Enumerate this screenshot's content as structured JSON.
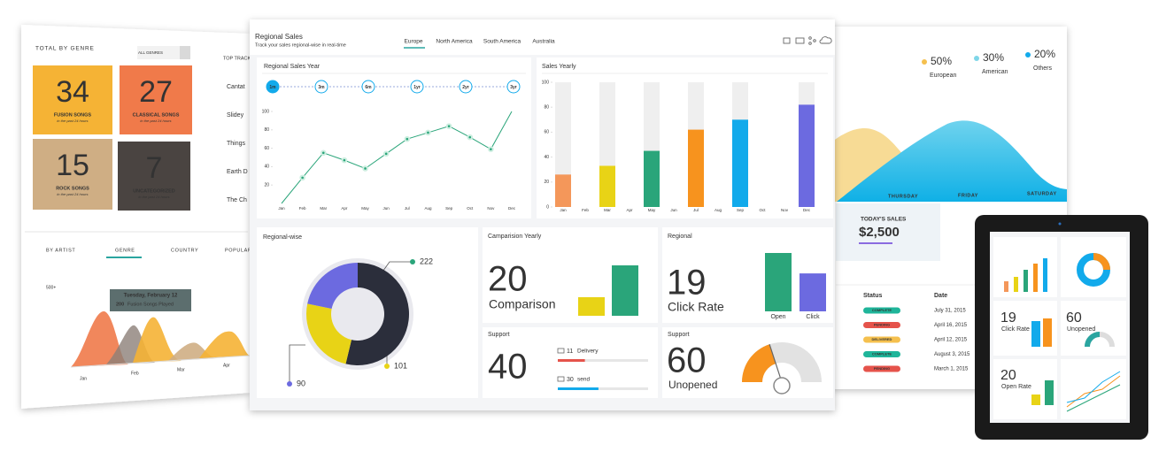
{
  "left_panel": {
    "title": "TOTAL BY GENRE",
    "filter": "ALL GENRES",
    "tiles": [
      {
        "value": 34,
        "label": "FUSION SONGS",
        "note": "in the past 24 hours"
      },
      {
        "value": 27,
        "label": "CLASSICAL SONGS",
        "note": "in the past 24 hours"
      },
      {
        "value": 15,
        "label": "ROCK SONGS",
        "note": "in the past 24 hours"
      },
      {
        "value": 7,
        "label": "UNCATEGORIZED",
        "note": "in the past 24 hours"
      }
    ],
    "top_tracks": {
      "title": "TOP TRACK",
      "items": [
        "Cantat",
        "Slidey",
        "Things",
        "Earth D",
        "The Ch"
      ]
    },
    "tabs": [
      "BY ARTIST",
      "GENRE",
      "COUNTRY",
      "POPULAR"
    ],
    "tooltip": {
      "date": "Tuesday, February 12",
      "count": 200,
      "text": "Fusion Songs Played"
    },
    "y_label": "500+",
    "months": [
      "Jan",
      "Feb",
      "Mar",
      "Apr"
    ]
  },
  "right_panel": {
    "legend": [
      {
        "value": "50%",
        "label": "European",
        "color": "#f5c04e"
      },
      {
        "value": "30%",
        "label": "American",
        "color": "#7fd6e8"
      },
      {
        "value": "20%",
        "label": "Others",
        "color": "#12aaeb"
      }
    ],
    "days": [
      "THURSDAY",
      "FRIDAY",
      "SATURDAY"
    ],
    "sales": {
      "label": "TODAY'S SALES",
      "value": "$2,500"
    },
    "table": {
      "header": [
        "Status",
        "Date"
      ],
      "rows": [
        [
          "COMPLETE",
          "July 31, 2015"
        ],
        [
          "PENDING",
          "April 16, 2015"
        ],
        [
          "DELIVERED",
          "April 12, 2015"
        ],
        [
          "COMPLETE",
          "August 3, 2015"
        ],
        [
          "PENDING",
          "March 1, 2015"
        ]
      ]
    }
  },
  "main": {
    "title": "Regional Sales",
    "subtitle": "Track your sales regional-wise in real-time",
    "tabs": [
      "Europe",
      "North America",
      "South America",
      "Australia"
    ],
    "sales_year": {
      "type": "line",
      "title": "Regional Sales Year",
      "ranges": [
        "1m",
        "3m",
        "6m",
        "1yr",
        "2yr",
        "3yr"
      ],
      "categories": [
        "Jan",
        "Feb",
        "Mar",
        "Apr",
        "May",
        "Jun",
        "Jul",
        "Aug",
        "Sep",
        "Oct",
        "Nov",
        "Dec"
      ],
      "values": [
        0,
        28,
        55,
        47,
        38,
        54,
        70,
        77,
        84,
        72,
        59,
        100
      ],
      "color": "#2aa57a",
      "ylim": [
        0,
        100
      ],
      "yticks": [
        20,
        40,
        60,
        80,
        100
      ]
    },
    "sales_yearly": {
      "type": "bar",
      "title": "Sales Yearly",
      "categories": [
        "Jan",
        "Feb",
        "Mar",
        "Apr",
        "May",
        "Jun",
        "Jul",
        "Aug",
        "Sep",
        "Oct",
        "Nov",
        "Dec"
      ],
      "values": [
        26,
        null,
        33,
        null,
        45,
        null,
        62,
        null,
        70,
        null,
        null,
        82
      ],
      "colors": [
        "#f4975a",
        null,
        "#e8d316",
        null,
        "#2aa57a",
        null,
        "#f7931e",
        null,
        "#12aaeb",
        null,
        null,
        "#6c6ae0"
      ],
      "ylim": [
        0,
        100
      ],
      "yticks": [
        0,
        20,
        40,
        60,
        80,
        100
      ]
    },
    "regional_wise": {
      "type": "donut",
      "title": "Regional-wise",
      "values": [
        222,
        101,
        90
      ],
      "colors": [
        "#2b2e3b",
        "#e8d316",
        "#6c6ae0"
      ]
    },
    "comparison": {
      "type": "bar",
      "title": "Camparision Yearly",
      "value": 20,
      "label": "Comparison",
      "values": [
        35,
        95
      ],
      "colors": [
        "#e8d316",
        "#2aa57a"
      ],
      "ylim": [
        0,
        100
      ]
    },
    "regional": {
      "type": "bar",
      "title": "Regional",
      "value": 19,
      "label": "Click Rate",
      "categories": [
        "Open",
        "Click"
      ],
      "values": [
        100,
        65
      ],
      "colors": [
        "#2aa57a",
        "#6c6ae0"
      ],
      "ylim": [
        0,
        100
      ]
    },
    "support": {
      "title": "Support",
      "value": 40,
      "rows": [
        {
          "count": 11,
          "label": "Delivery",
          "progress": 30,
          "color": "#e5534b"
        },
        {
          "count": 30,
          "label": "send",
          "progress": 45,
          "color": "#12aaeb"
        }
      ],
      "xlim": [
        0,
        100
      ]
    },
    "support_gauge": {
      "title": "Support",
      "value": 60,
      "label": "Unopened",
      "gauge": 40,
      "color": "#f7931e",
      "xlim": [
        0,
        100
      ]
    }
  },
  "tablet": {
    "cards": [
      {
        "value": 19,
        "label": "Click Rate"
      },
      {
        "value": 60,
        "label": "Unopened"
      },
      {
        "value": 20,
        "label": "Open Rate"
      }
    ]
  }
}
